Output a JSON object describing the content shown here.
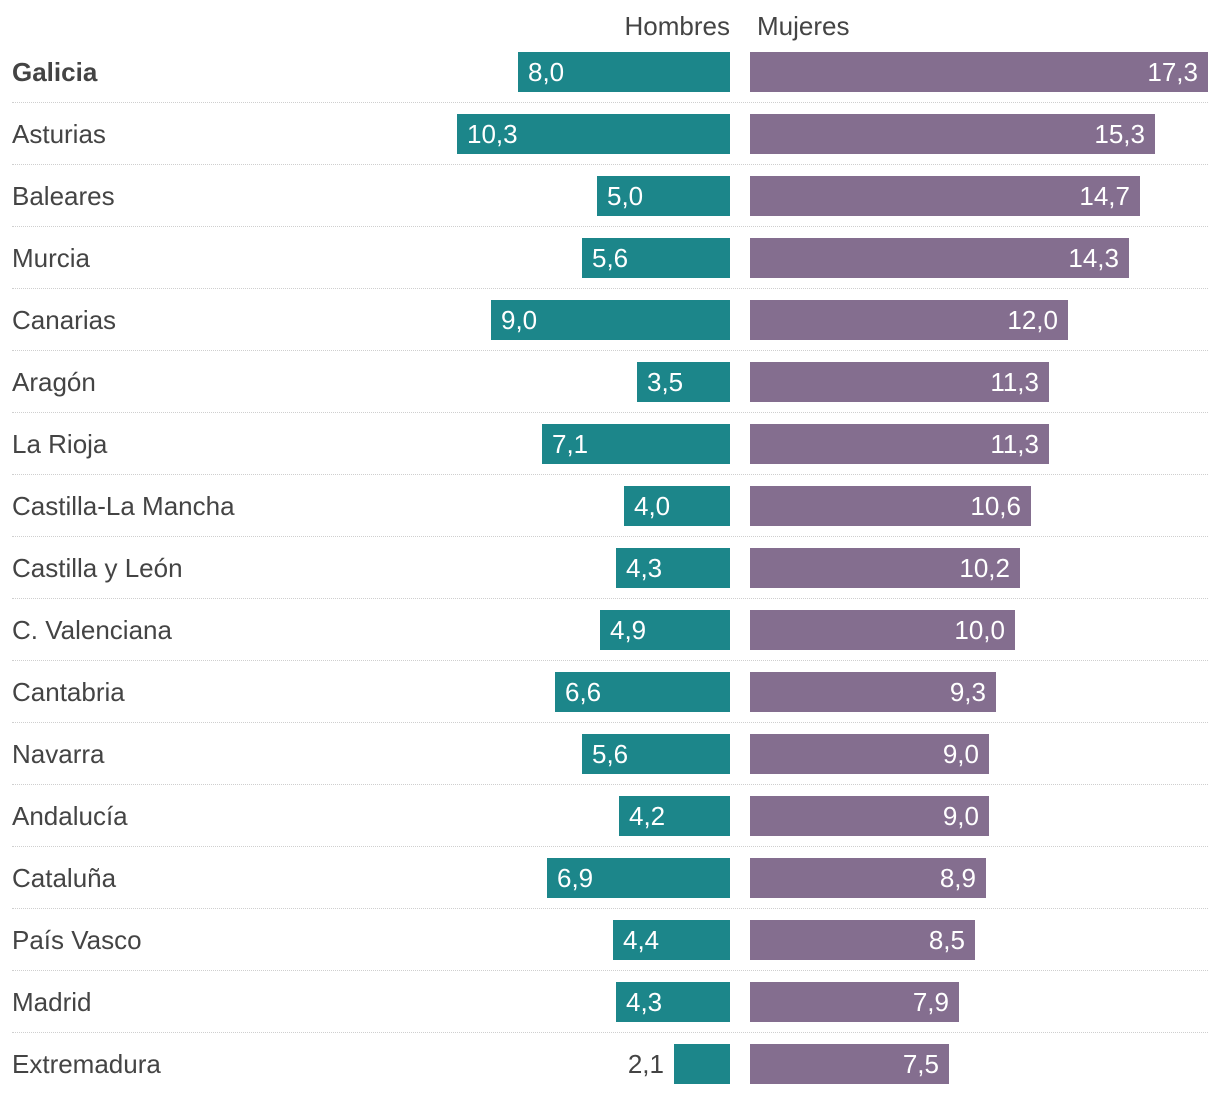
{
  "chart_data": {
    "type": "bar",
    "orientation": "horizontal-diverging",
    "categories": [
      "Galicia",
      "Asturias",
      "Baleares",
      "Murcia",
      "Canarias",
      "Aragón",
      "La Rioja",
      "Castilla-La Mancha",
      "Castilla y León",
      "C. Valenciana",
      "Cantabria",
      "Navarra",
      "Andalucía",
      "Cataluña",
      "País Vasco",
      "Madrid",
      "Extremadura"
    ],
    "highlighted_category": "Galicia",
    "series": [
      {
        "name": "Hombres",
        "color": "#1c868a",
        "values": [
          8.0,
          10.3,
          5.0,
          5.6,
          9.0,
          3.5,
          7.1,
          4.0,
          4.3,
          4.9,
          6.6,
          5.6,
          4.2,
          6.9,
          4.4,
          4.3,
          2.1
        ],
        "labels": [
          "8,0",
          "10,3",
          "5,0",
          "5,6",
          "9,0",
          "3,5",
          "7,1",
          "4,0",
          "4,3",
          "4,9",
          "6,6",
          "5,6",
          "4,2",
          "6,9",
          "4,4",
          "4,3",
          "2,1"
        ]
      },
      {
        "name": "Mujeres",
        "color": "#846e8f",
        "values": [
          17.3,
          15.3,
          14.7,
          14.3,
          12.0,
          11.3,
          11.3,
          10.6,
          10.2,
          10.0,
          9.3,
          9.0,
          9.0,
          8.9,
          8.5,
          7.9,
          7.5
        ],
        "labels": [
          "17,3",
          "15,3",
          "14,7",
          "14,3",
          "12,0",
          "11,3",
          "11,3",
          "10,6",
          "10,2",
          "10,0",
          "9,3",
          "9,0",
          "9,0",
          "8,9",
          "8,5",
          "7,9",
          "7,5"
        ]
      }
    ],
    "title": "",
    "xlabel": "",
    "ylabel": "",
    "xlim": [
      0,
      17.3
    ],
    "grid": false,
    "legend": "top"
  }
}
